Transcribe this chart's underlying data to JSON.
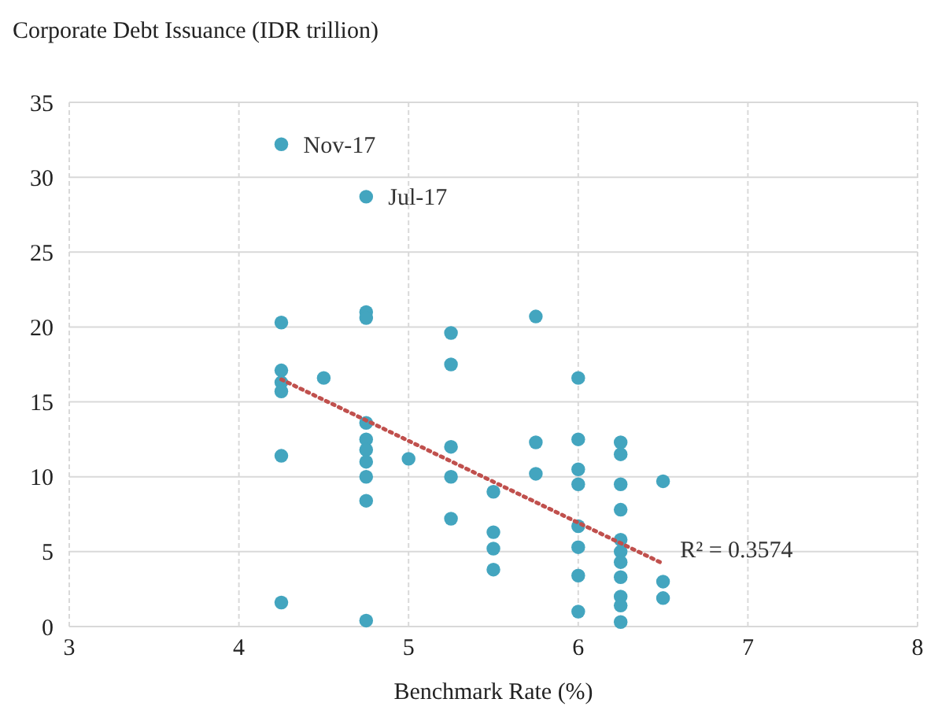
{
  "chart_data": {
    "type": "scatter",
    "title": "Corporate Debt Issuance (IDR trillion)",
    "xlabel": "Benchmark Rate (%)",
    "xlim": [
      3,
      8
    ],
    "xticks": [
      3,
      4,
      5,
      6,
      7,
      8
    ],
    "ylim": [
      0,
      35
    ],
    "yticks": [
      0,
      5,
      10,
      15,
      20,
      25,
      30,
      35
    ],
    "grid": true,
    "series": [
      {
        "color": "#43a5bf",
        "marker": "circle",
        "x": [
          4.25,
          4.25,
          4.25,
          4.25,
          4.25,
          4.25,
          4.25,
          4.5,
          4.75,
          4.75,
          4.75,
          4.75,
          4.75,
          4.75,
          4.75,
          4.75,
          4.75,
          4.75,
          5,
          5.25,
          5.25,
          5.25,
          5.25,
          5.25,
          5.5,
          5.5,
          5.5,
          5.5,
          5.75,
          5.75,
          5.75,
          6,
          6,
          6,
          6,
          6,
          6,
          6,
          6,
          6.25,
          6.25,
          6.25,
          6.25,
          6.25,
          6.25,
          6.25,
          6.25,
          6.25,
          6.25,
          6.25,
          6.5,
          6.5,
          6.5
        ],
        "values": [
          32.2,
          20.3,
          17.1,
          16.3,
          15.7,
          11.4,
          1.6,
          16.6,
          28.7,
          21,
          20.6,
          13.6,
          12.5,
          11.8,
          11,
          10,
          8.4,
          0.4,
          11.2,
          19.6,
          17.5,
          12,
          10,
          7.2,
          9,
          6.3,
          5.2,
          3.8,
          20.7,
          12.3,
          10.2,
          16.6,
          12.5,
          10.5,
          9.5,
          6.7,
          5.3,
          3.4,
          1,
          12.3,
          11.5,
          9.5,
          7.8,
          5.8,
          5,
          4.3,
          3.3,
          2,
          1.4,
          0.3,
          9.7,
          3,
          1.9
        ]
      },
      {
        "type": "line",
        "color": "#c0504d",
        "line_style": "dotted",
        "marker": "none",
        "x": [
          4.25,
          6.5
        ],
        "values": [
          16.5,
          4.2
        ]
      }
    ],
    "annotations": [
      {
        "text": "Nov-17",
        "x": 4.25,
        "y": 32.2
      },
      {
        "text": "Jul-17",
        "x": 4.75,
        "y": 28.7
      },
      "R² = 0.3574"
    ]
  }
}
